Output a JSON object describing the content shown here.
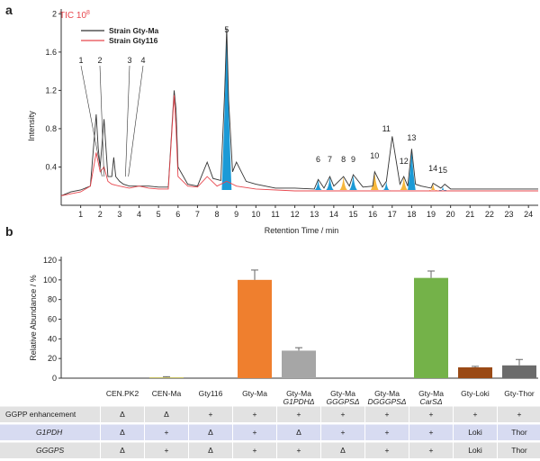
{
  "panel_a": {
    "label": "a",
    "tic_prefix": "TIC 10",
    "tic_exp": "8",
    "legend": [
      {
        "name": "Strain Gty-Ma",
        "color": "#333333"
      },
      {
        "name": "Strain Gty116",
        "color": "#e8474e"
      }
    ],
    "ylabel": "Intensity",
    "xlabel": "Retention Time / min",
    "peak_labels": [
      "1",
      "2",
      "3",
      "4",
      "5",
      "6",
      "7",
      "8",
      "9",
      "10",
      "11",
      "12",
      "13",
      "14",
      "15"
    ]
  },
  "panel_b": {
    "label": "b"
  },
  "chart_data": [
    {
      "type": "line",
      "title": "",
      "xlabel": "Retention Time / min",
      "ylabel": "Intensity",
      "xlim": [
        0,
        24.5
      ],
      "ylim": [
        0,
        2.05
      ],
      "x_ticks": [
        "1",
        "2",
        "3",
        "4",
        "5",
        "6",
        "7",
        "8",
        "9",
        "10",
        "11",
        "12",
        "13",
        "14",
        "15",
        "16",
        "17",
        "18",
        "19",
        "20",
        "21",
        "22",
        "23",
        "24"
      ],
      "y_ticks": [
        "0.4",
        "0.8",
        "1.2",
        "1.6",
        "2"
      ],
      "series": [
        {
          "name": "Strain Gty-Ma",
          "color": "#333333",
          "x": [
            0.0,
            0.5,
            1.0,
            1.5,
            1.8,
            1.9,
            2.0,
            2.2,
            2.4,
            2.6,
            2.7,
            2.8,
            3.0,
            3.2,
            3.5,
            4.0,
            4.5,
            5.0,
            5.5,
            5.8,
            5.9,
            6.0,
            6.5,
            7.0,
            7.5,
            7.8,
            8.2,
            8.4,
            8.5,
            8.6,
            8.8,
            9.0,
            9.5,
            10.0,
            11.0,
            12.0,
            13.0,
            13.2,
            13.5,
            13.8,
            14.0,
            14.5,
            14.8,
            15.0,
            15.5,
            16.0,
            16.1,
            16.5,
            16.7,
            17.0,
            17.4,
            17.6,
            17.8,
            18.0,
            18.2,
            18.5,
            19.0,
            19.1,
            19.5,
            19.7,
            20.0,
            21.0,
            22.0,
            23.0,
            24.0,
            24.5
          ],
          "y": [
            0.1,
            0.14,
            0.16,
            0.2,
            0.95,
            0.6,
            0.4,
            0.9,
            0.3,
            0.3,
            0.5,
            0.3,
            0.25,
            0.22,
            0.2,
            0.2,
            0.2,
            0.19,
            0.19,
            1.2,
            1.0,
            0.4,
            0.22,
            0.2,
            0.45,
            0.28,
            0.26,
            1.2,
            1.85,
            1.1,
            0.35,
            0.45,
            0.25,
            0.22,
            0.18,
            0.18,
            0.17,
            0.27,
            0.18,
            0.3,
            0.2,
            0.3,
            0.2,
            0.32,
            0.19,
            0.2,
            0.35,
            0.19,
            0.25,
            0.72,
            0.22,
            0.3,
            0.2,
            0.59,
            0.22,
            0.2,
            0.18,
            0.23,
            0.18,
            0.22,
            0.17,
            0.17,
            0.17,
            0.17,
            0.17,
            0.17
          ]
        },
        {
          "name": "Strain Gty116",
          "color": "#e8474e",
          "x": [
            0.0,
            0.5,
            1.0,
            1.5,
            1.8,
            1.9,
            2.0,
            2.2,
            2.4,
            2.6,
            3.0,
            3.5,
            4.0,
            4.5,
            5.0,
            5.5,
            5.8,
            5.9,
            6.0,
            6.5,
            7.0,
            7.5,
            8.0,
            8.5,
            9.0,
            10.0,
            12.0,
            14.0,
            16.0,
            18.0,
            20.0,
            22.0,
            24.0,
            24.5
          ],
          "y": [
            0.1,
            0.12,
            0.14,
            0.2,
            0.55,
            0.45,
            0.35,
            0.4,
            0.25,
            0.22,
            0.2,
            0.18,
            0.2,
            0.18,
            0.17,
            0.17,
            1.15,
            0.8,
            0.3,
            0.2,
            0.19,
            0.3,
            0.2,
            0.25,
            0.2,
            0.17,
            0.15,
            0.15,
            0.15,
            0.15,
            0.15,
            0.15,
            0.15,
            0.15
          ]
        }
      ],
      "peaks": [
        {
          "id": "1",
          "x": 2.1
        },
        {
          "id": "2",
          "x": 2.2
        },
        {
          "id": "3",
          "x": 3.3
        },
        {
          "id": "4",
          "x": 3.45
        },
        {
          "id": "5",
          "x": 8.5
        },
        {
          "id": "6",
          "x": 13.2
        },
        {
          "id": "7",
          "x": 13.8
        },
        {
          "id": "8",
          "x": 14.5
        },
        {
          "id": "9",
          "x": 15.0
        },
        {
          "id": "10",
          "x": 16.1
        },
        {
          "id": "11",
          "x": 16.7
        },
        {
          "id": "12",
          "x": 17.6
        },
        {
          "id": "13",
          "x": 18.0
        },
        {
          "id": "14",
          "x": 19.1
        },
        {
          "id": "15",
          "x": 19.6
        }
      ]
    },
    {
      "type": "bar",
      "title": "",
      "ylabel": "Relative Abundance / %",
      "ylim": [
        0,
        120
      ],
      "y_ticks": [
        "0",
        "20",
        "40",
        "60",
        "80",
        "100",
        "120"
      ],
      "categories": [
        {
          "line1": "CEN.PK2",
          "line2": ""
        },
        {
          "line1": "CEN-Ma",
          "line2": ""
        },
        {
          "line1": "Gty116",
          "line2": ""
        },
        {
          "line1": "Gty-Ma",
          "line2": ""
        },
        {
          "line1": "Gty-Ma",
          "line2": "G1PDHΔ"
        },
        {
          "line1": "Gty-Ma",
          "line2": "GGGPSΔ"
        },
        {
          "line1": "Gty-Ma",
          "line2": "DGGGPSΔ"
        },
        {
          "line1": "Gty-Ma",
          "line2": "CarSΔ"
        },
        {
          "line1": "Gty-Loki",
          "line2": ""
        },
        {
          "line1": "Gty-Thor",
          "line2": ""
        }
      ],
      "values": [
        0,
        1,
        0,
        100,
        28,
        0,
        0,
        102,
        11,
        13
      ],
      "errors": [
        0,
        0.5,
        0,
        10,
        3,
        0,
        0,
        7,
        1,
        6
      ],
      "colors": [
        "#cccccc",
        "#c9c36a",
        "#cccccc",
        "#ef7f2e",
        "#a6a6a6",
        "#cccccc",
        "#cccccc",
        "#74b249",
        "#9a4a16",
        "#6b6b6b"
      ]
    }
  ],
  "table": {
    "rows": [
      {
        "label": "GGPP enhancement",
        "italic": false,
        "bg": "#e2e2e2",
        "cells": [
          "Δ",
          "Δ",
          "+",
          "+",
          "+",
          "+",
          "+",
          "+",
          "+",
          "+"
        ]
      },
      {
        "label": "G1PDH",
        "italic": true,
        "bg": "#d7dbf1",
        "cells": [
          "Δ",
          "+",
          "Δ",
          "+",
          "Δ",
          "+",
          "+",
          "+",
          "Loki",
          "Thor"
        ]
      },
      {
        "label": "GGGPS",
        "italic": true,
        "bg": "#e2e2e2",
        "cells": [
          "Δ",
          "+",
          "Δ",
          "+",
          "+",
          "Δ",
          "+",
          "+",
          "Loki",
          "Thor"
        ]
      }
    ]
  }
}
